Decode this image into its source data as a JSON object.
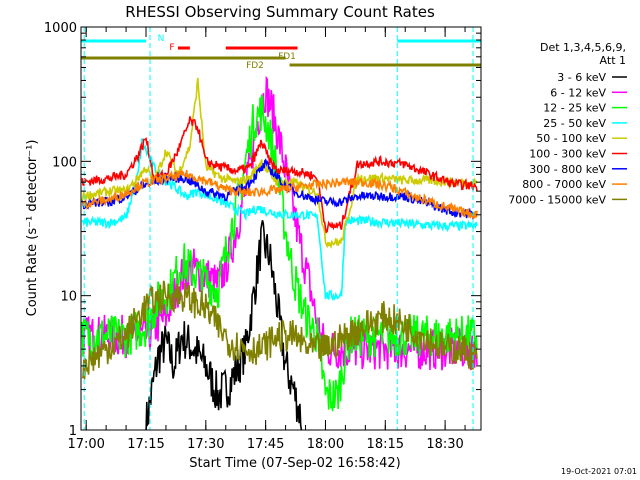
{
  "chart_data": {
    "type": "line",
    "title": "RHESSI Observing Summary Count Rates",
    "xlabel": "Start Time (07-Sep-02 16:58:42)",
    "ylabel": "Count Rate (s⁻¹ detector⁻¹)",
    "y_scale": "log",
    "xlim": [
      "16:58:42",
      "18:39:00"
    ],
    "ylim": [
      1,
      1000
    ],
    "x_ticks": [
      "17:00",
      "17:15",
      "17:30",
      "17:45",
      "18:00",
      "18:15",
      "18:30"
    ],
    "y_ticks": [
      "1",
      "10",
      "100",
      "1000"
    ],
    "legend_header": [
      "Det 1,3,4,5,6,9,",
      "Att 1"
    ],
    "legend_position": "right",
    "timestamp": "19-Oct-2021 07:01",
    "flags": [
      {
        "label": "N",
        "color": "#00ffff",
        "intervals": [
          [
            "16:58:42",
            "17:15:00"
          ],
          [
            "18:18:00",
            "18:39:00"
          ]
        ]
      },
      {
        "label": "F",
        "color": "#ff0000",
        "intervals": [
          [
            "17:23:00",
            "17:26:00"
          ],
          [
            "17:35:00",
            "17:53:00"
          ]
        ]
      },
      {
        "label": "FD1",
        "color": "#808000",
        "intervals": [
          [
            "16:58:42",
            "17:50:00"
          ]
        ]
      },
      {
        "label": "FD2",
        "color": "#808000",
        "intervals": [
          [
            "17:51:00",
            "18:39:00"
          ]
        ]
      }
    ],
    "night_markers": [
      "16:59:30",
      "17:16:00",
      "18:18:00",
      "18:37:00"
    ],
    "series": [
      {
        "name": "3 - 6 keV",
        "color": "#000000",
        "x": [
          "17:15",
          "17:18",
          "17:20",
          "17:22",
          "17:24",
          "17:27",
          "17:30",
          "17:33",
          "17:36",
          "17:40",
          "17:42",
          "17:44",
          "17:46",
          "17:48",
          "17:50",
          "17:52",
          "17:54"
        ],
        "y": [
          1.1,
          3.5,
          4.5,
          3.0,
          5.0,
          4.0,
          3.0,
          1.8,
          2.2,
          4.0,
          10.0,
          26.0,
          20.0,
          8.0,
          3.0,
          2.0,
          1.2
        ]
      },
      {
        "name": "6 - 12 keV",
        "color": "#ff00ff",
        "x": [
          "16:59",
          "17:10",
          "17:15",
          "17:20",
          "17:24",
          "17:27",
          "17:30",
          "17:33",
          "17:36",
          "17:40",
          "17:43",
          "17:45",
          "17:47",
          "17:49",
          "17:51",
          "17:53",
          "17:56",
          "17:58",
          "18:00",
          "18:04",
          "18:10",
          "18:16",
          "18:20",
          "18:26",
          "18:30",
          "18:33",
          "18:36",
          "18:38"
        ],
        "y": [
          5,
          5,
          5,
          7,
          14,
          16,
          14,
          12,
          20,
          60,
          200,
          340,
          220,
          120,
          60,
          30,
          12,
          6,
          4,
          4,
          4,
          4,
          4,
          4,
          4,
          4,
          4,
          4
        ]
      },
      {
        "name": "12 - 25 keV",
        "color": "#00ff00",
        "x": [
          "16:59",
          "17:10",
          "17:15",
          "17:18",
          "17:21",
          "17:24",
          "17:27",
          "17:30",
          "17:33",
          "17:36",
          "17:38",
          "17:40",
          "17:42",
          "17:44",
          "17:46",
          "17:48",
          "17:50",
          "17:52",
          "17:55",
          "17:58",
          "18:00",
          "18:03",
          "18:06",
          "18:12",
          "18:18",
          "18:24",
          "18:30",
          "18:34",
          "18:38"
        ],
        "y": [
          5,
          5,
          6,
          9,
          11,
          18,
          15,
          13,
          11,
          28,
          50,
          100,
          200,
          240,
          160,
          80,
          30,
          14,
          7,
          5,
          1.8,
          1.8,
          5,
          5,
          5,
          5,
          5,
          5,
          5
        ]
      },
      {
        "name": "25 - 50 keV",
        "color": "#00ffff",
        "x": [
          "16:59",
          "17:06",
          "17:10",
          "17:13",
          "17:14",
          "17:17",
          "17:19",
          "17:22",
          "17:25",
          "17:28",
          "17:31",
          "17:34",
          "17:37",
          "17:40",
          "17:43",
          "17:46",
          "17:50",
          "17:55",
          "17:58",
          "18:00",
          "18:02",
          "18:04",
          "18:05",
          "18:10",
          "18:16",
          "18:22",
          "18:28",
          "18:34",
          "18:38"
        ],
        "y": [
          35,
          35,
          38,
          80,
          140,
          90,
          75,
          65,
          55,
          60,
          55,
          50,
          45,
          40,
          45,
          42,
          40,
          40,
          38,
          10,
          10,
          10,
          36,
          36,
          35,
          34,
          33,
          33,
          33
        ]
      },
      {
        "name": "50 - 100 keV",
        "color": "#cccc00",
        "x": [
          "16:59",
          "17:06",
          "17:10",
          "17:13",
          "17:15",
          "17:17",
          "17:20",
          "17:23",
          "17:26",
          "17:28",
          "17:30",
          "17:34",
          "17:38",
          "17:41",
          "17:44",
          "17:46",
          "17:48",
          "17:52",
          "17:56",
          "17:58",
          "18:00",
          "18:02",
          "18:04",
          "18:08",
          "18:14",
          "18:20",
          "18:26",
          "18:32",
          "18:38"
        ],
        "y": [
          55,
          60,
          60,
          75,
          90,
          70,
          120,
          80,
          130,
          400,
          90,
          75,
          70,
          75,
          100,
          80,
          70,
          70,
          60,
          60,
          25,
          25,
          25,
          75,
          75,
          72,
          72,
          70,
          70
        ]
      },
      {
        "name": "100 - 300 keV",
        "color": "#ff0000",
        "x": [
          "16:59",
          "17:06",
          "17:10",
          "17:13",
          "17:15",
          "17:17",
          "17:20",
          "17:23",
          "17:26",
          "17:28",
          "17:30",
          "17:34",
          "17:38",
          "17:41",
          "17:44",
          "17:46",
          "17:48",
          "17:52",
          "17:56",
          "17:58",
          "18:00",
          "18:02",
          "18:04",
          "18:08",
          "18:14",
          "18:20",
          "18:26",
          "18:32",
          "18:38"
        ],
        "y": [
          70,
          75,
          80,
          110,
          150,
          75,
          80,
          120,
          200,
          180,
          100,
          90,
          85,
          90,
          140,
          100,
          85,
          85,
          80,
          75,
          32,
          33,
          33,
          95,
          100,
          95,
          80,
          68,
          65
        ]
      },
      {
        "name": "300 - 800 keV",
        "color": "#0000ff",
        "x": [
          "16:59",
          "17:06",
          "17:10",
          "17:14",
          "17:20",
          "17:25",
          "17:30",
          "17:35",
          "17:40",
          "17:45",
          "17:50",
          "17:55",
          "17:58",
          "18:00",
          "18:04",
          "18:08",
          "18:14",
          "18:20",
          "18:26",
          "18:32",
          "18:38"
        ],
        "y": [
          48,
          50,
          55,
          65,
          75,
          75,
          60,
          55,
          65,
          95,
          65,
          55,
          52,
          50,
          50,
          55,
          55,
          55,
          48,
          42,
          40
        ]
      },
      {
        "name": "800 - 7000 keV",
        "color": "#ff8000",
        "x": [
          "16:59",
          "17:06",
          "17:10",
          "17:14",
          "17:20",
          "17:25",
          "17:30",
          "17:35",
          "17:40",
          "17:45",
          "17:50",
          "17:55",
          "18:00",
          "18:05",
          "18:10",
          "18:16",
          "18:22",
          "18:28",
          "18:34",
          "18:38"
        ],
        "y": [
          48,
          52,
          58,
          68,
          75,
          80,
          72,
          62,
          58,
          60,
          62,
          66,
          68,
          70,
          70,
          65,
          55,
          48,
          42,
          40
        ]
      },
      {
        "name": "7000 - 15000 keV",
        "color": "#808000",
        "x": [
          "16:59",
          "17:05",
          "17:10",
          "17:13",
          "17:16",
          "17:20",
          "17:24",
          "17:27",
          "17:30",
          "17:33",
          "17:36",
          "17:40",
          "17:44",
          "17:48",
          "17:52",
          "17:56",
          "18:00",
          "18:05",
          "18:10",
          "18:15",
          "18:20",
          "18:25",
          "18:30",
          "18:34",
          "18:38"
        ],
        "y": [
          3,
          4,
          5,
          7,
          9,
          10,
          10,
          9,
          8,
          6,
          4.5,
          4,
          4,
          5,
          5,
          4,
          4,
          5,
          6,
          7,
          6,
          5,
          4,
          4,
          3.5
        ]
      }
    ]
  }
}
